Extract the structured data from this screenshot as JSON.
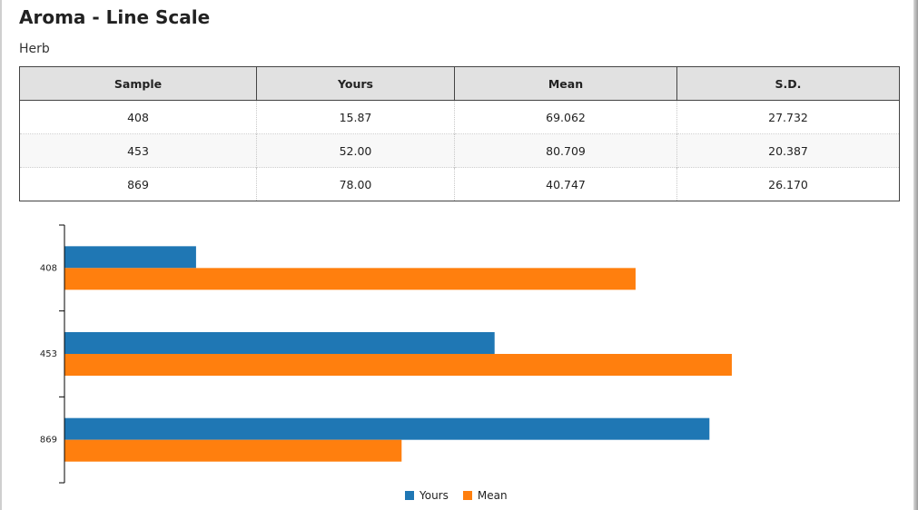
{
  "page": {
    "title": "Aroma - Line Scale",
    "subtitle": "Herb"
  },
  "table": {
    "headers": [
      "Sample",
      "Yours",
      "Mean",
      "S.D."
    ],
    "rows": [
      [
        "408",
        "15.87",
        "69.062",
        "27.732"
      ],
      [
        "453",
        "52.00",
        "80.709",
        "20.387"
      ],
      [
        "869",
        "78.00",
        "40.747",
        "26.170"
      ]
    ]
  },
  "colors": {
    "yours": "#1f77b4",
    "mean": "#ff7f0e"
  },
  "chart_data": {
    "type": "bar",
    "orientation": "horizontal",
    "categories": [
      "408",
      "453",
      "869"
    ],
    "series": [
      {
        "name": "Yours",
        "values": [
          15.87,
          52.0,
          78.0
        ]
      },
      {
        "name": "Mean",
        "values": [
          69.062,
          80.709,
          40.747
        ]
      }
    ],
    "xlim": [
      0,
      100
    ],
    "grid": false,
    "legend": "bottom"
  }
}
